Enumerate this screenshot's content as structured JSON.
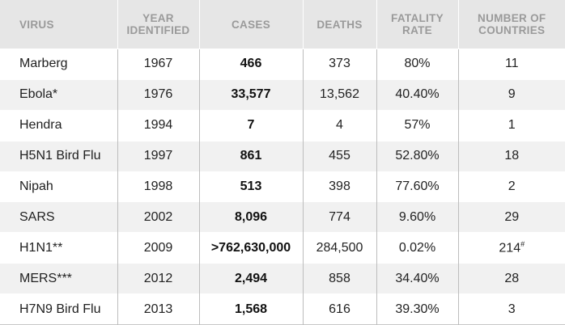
{
  "headers": [
    "VIRUS",
    "YEAR IDENTIFIED",
    "CASES",
    "DEATHS",
    "FATALITY RATE",
    "NUMBER OF COUNTRIES"
  ],
  "rows": [
    {
      "virus": "Marberg",
      "year": "1967",
      "cases": "466",
      "deaths": "373",
      "rate": "80%",
      "countries": "11"
    },
    {
      "virus": "Ebola*",
      "year": "1976",
      "cases": "33,577",
      "deaths": "13,562",
      "rate": "40.40%",
      "countries": "9"
    },
    {
      "virus": "Hendra",
      "year": "1994",
      "cases": "7",
      "deaths": "4",
      "rate": "57%",
      "countries": "1"
    },
    {
      "virus": "H5N1 Bird Flu",
      "year": "1997",
      "cases": "861",
      "deaths": "455",
      "rate": "52.80%",
      "countries": "18"
    },
    {
      "virus": "Nipah",
      "year": "1998",
      "cases": "513",
      "deaths": "398",
      "rate": "77.60%",
      "countries": "2"
    },
    {
      "virus": "SARS",
      "year": "2002",
      "cases": "8,096",
      "deaths": "774",
      "rate": "9.60%",
      "countries": "29"
    },
    {
      "virus": "H1N1**",
      "year": "2009",
      "cases": ">762,630,000",
      "deaths": "284,500",
      "rate": "0.02%",
      "countries": "214#"
    },
    {
      "virus": "MERS***",
      "year": "2012",
      "cases": "2,494",
      "deaths": "858",
      "rate": "34.40%",
      "countries": "28"
    },
    {
      "virus": "H7N9 Bird Flu",
      "year": "2013",
      "cases": "1,568",
      "deaths": "616",
      "rate": "39.30%",
      "countries": "3"
    }
  ]
}
